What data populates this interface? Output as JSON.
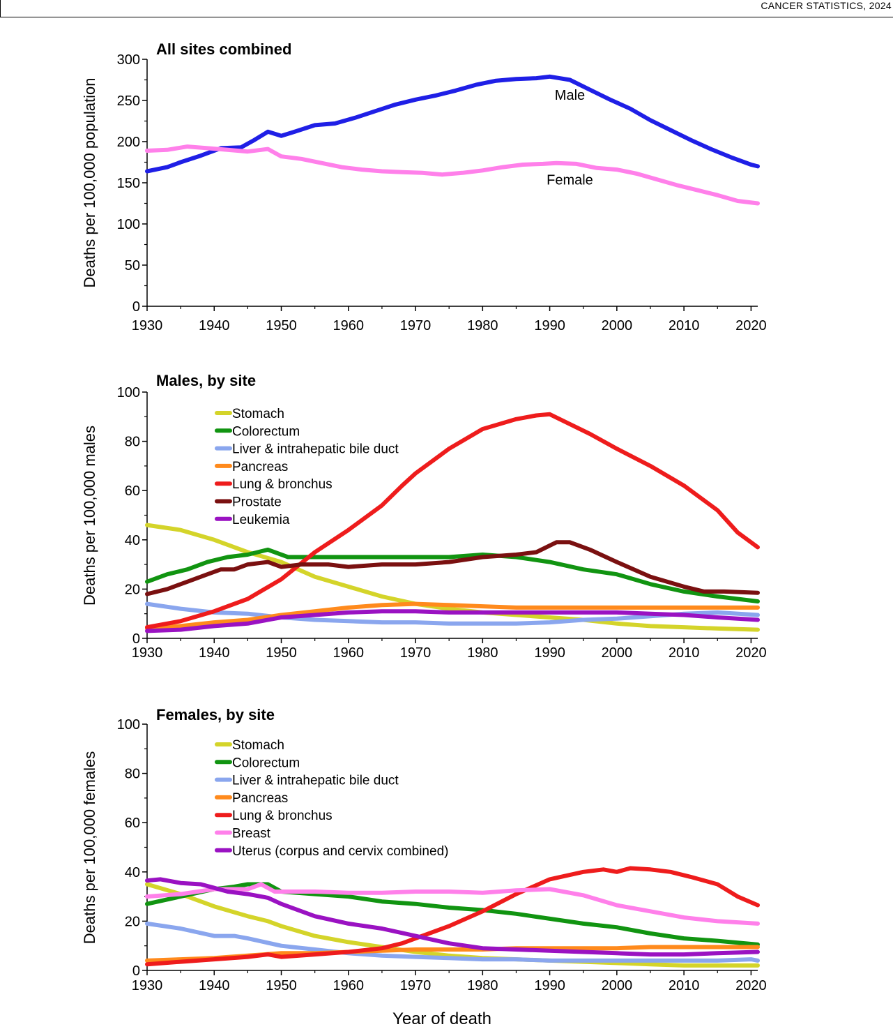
{
  "running_head": "CANCER STATISTICS, 2024",
  "shared_xlabel": "Year of death",
  "colors": {
    "male": "#1f1fe6",
    "female": "#ff80ea",
    "stomach": "#d4d42a",
    "colorectum": "#119411",
    "liver": "#8aa6ee",
    "pancreas": "#ff8a1c",
    "lung": "#ee1c1c",
    "prostate": "#7a1010",
    "leukemia": "#9a12c2",
    "breast": "#ff80ea",
    "uterus": "#9a12c2"
  },
  "chart_data": [
    {
      "type": "line",
      "title": "All sites combined",
      "ylabel": "Deaths per 100,000 population",
      "xlim": [
        1930,
        2021
      ],
      "ylim": [
        0,
        300
      ],
      "xticks": [
        1930,
        1940,
        1950,
        1960,
        1970,
        1980,
        1990,
        2000,
        2010,
        2020
      ],
      "yticks": [
        0,
        50,
        100,
        150,
        200,
        250,
        300
      ],
      "legend_placement": "inline-labels",
      "annotations": [
        {
          "text": "Male",
          "series": "Male",
          "x": 1993,
          "y": 251
        },
        {
          "text": "Female",
          "series": "Female",
          "x": 1993,
          "y": 148
        }
      ],
      "series": [
        {
          "name": "Male",
          "color": "#1f1fe6",
          "x": [
            1930,
            1933,
            1935,
            1938,
            1941,
            1944,
            1946,
            1948,
            1950,
            1952,
            1955,
            1958,
            1961,
            1964,
            1967,
            1970,
            1973,
            1976,
            1979,
            1982,
            1985,
            1988,
            1990,
            1993,
            1996,
            1999,
            2002,
            2005,
            2008,
            2011,
            2014,
            2017,
            2020,
            2021
          ],
          "y": [
            164,
            169,
            175,
            183,
            192,
            193,
            202,
            212,
            207,
            212,
            220,
            222,
            229,
            237,
            245,
            251,
            256,
            262,
            269,
            274,
            276,
            277,
            279,
            275,
            263,
            251,
            240,
            226,
            214,
            202,
            191,
            181,
            172,
            170
          ]
        },
        {
          "name": "Female",
          "color": "#ff80ea",
          "x": [
            1930,
            1933,
            1936,
            1939,
            1942,
            1945,
            1948,
            1950,
            1953,
            1956,
            1959,
            1962,
            1965,
            1968,
            1971,
            1974,
            1977,
            1980,
            1983,
            1986,
            1989,
            1991,
            1994,
            1997,
            2000,
            2003,
            2006,
            2009,
            2012,
            2015,
            2018,
            2021
          ],
          "y": [
            189,
            190,
            194,
            192,
            190,
            188,
            191,
            182,
            179,
            174,
            169,
            166,
            164,
            163,
            162,
            160,
            162,
            165,
            169,
            172,
            173,
            174,
            173,
            168,
            166,
            161,
            154,
            147,
            141,
            135,
            128,
            125
          ]
        }
      ]
    },
    {
      "type": "line",
      "title": "Males, by site",
      "ylabel": "Deaths per 100,000 males",
      "xlim": [
        1930,
        2021
      ],
      "ylim": [
        0,
        100
      ],
      "xticks": [
        1930,
        1940,
        1950,
        1960,
        1970,
        1980,
        1990,
        2000,
        2010,
        2020
      ],
      "yticks": [
        0,
        20,
        40,
        60,
        80,
        100
      ],
      "legend_placement": "top-left",
      "series": [
        {
          "name": "Stomach",
          "color": "#d4d42a",
          "x": [
            1930,
            1935,
            1940,
            1945,
            1950,
            1955,
            1960,
            1965,
            1970,
            1975,
            1980,
            1985,
            1990,
            1995,
            2000,
            2005,
            2010,
            2015,
            2021
          ],
          "y": [
            46,
            44,
            40,
            35,
            31,
            25,
            21,
            17,
            14,
            12,
            10.5,
            9.5,
            8.5,
            7.5,
            6,
            5,
            4.5,
            4,
            3.5
          ]
        },
        {
          "name": "Colorectum",
          "color": "#119411",
          "x": [
            1930,
            1933,
            1936,
            1939,
            1942,
            1945,
            1948,
            1951,
            1955,
            1960,
            1965,
            1970,
            1975,
            1980,
            1985,
            1990,
            1995,
            2000,
            2005,
            2010,
            2015,
            2021
          ],
          "y": [
            23,
            26,
            28,
            31,
            33,
            34,
            36,
            33,
            33,
            33,
            33,
            33,
            33,
            34,
            33,
            31,
            28,
            26,
            22,
            19,
            17,
            15
          ]
        },
        {
          "name": "Liver & intrahepatic bile duct",
          "color": "#8aa6ee",
          "x": [
            1930,
            1935,
            1940,
            1945,
            1950,
            1955,
            1960,
            1965,
            1970,
            1975,
            1980,
            1985,
            1990,
            1995,
            2000,
            2005,
            2010,
            2015,
            2021
          ],
          "y": [
            14,
            12,
            10.5,
            10,
            8.5,
            7.5,
            7,
            6.5,
            6.5,
            6,
            6,
            6,
            6.5,
            7.5,
            8,
            9,
            10,
            10.5,
            9.5
          ]
        },
        {
          "name": "Pancreas",
          "color": "#ff8a1c",
          "x": [
            1930,
            1935,
            1940,
            1945,
            1950,
            1955,
            1960,
            1965,
            1970,
            1975,
            1980,
            1985,
            1990,
            1995,
            2000,
            2005,
            2010,
            2015,
            2021
          ],
          "y": [
            4,
            5,
            6.5,
            7.5,
            9.5,
            11,
            12.5,
            13.5,
            14,
            13.5,
            13,
            12.5,
            12.5,
            12.5,
            12.5,
            12.5,
            12.5,
            12.5,
            12.5
          ]
        },
        {
          "name": "Lung & bronchus",
          "color": "#ee1c1c",
          "x": [
            1930,
            1935,
            1940,
            1945,
            1950,
            1955,
            1960,
            1965,
            1968,
            1970,
            1975,
            1980,
            1985,
            1988,
            1990,
            1993,
            1996,
            2000,
            2005,
            2010,
            2015,
            2018,
            2021
          ],
          "y": [
            4.5,
            7,
            11,
            16,
            24,
            35,
            44,
            54,
            62,
            67,
            77,
            85,
            89,
            90.5,
            91,
            87,
            83,
            77,
            70,
            62,
            52,
            43,
            37
          ]
        },
        {
          "name": "Prostate",
          "color": "#7a1010",
          "x": [
            1930,
            1933,
            1936,
            1939,
            1941,
            1943,
            1945,
            1948,
            1950,
            1953,
            1957,
            1960,
            1965,
            1970,
            1975,
            1980,
            1985,
            1988,
            1991,
            1993,
            1996,
            2000,
            2005,
            2010,
            2013,
            2016,
            2021
          ],
          "y": [
            18,
            20,
            23,
            26,
            28,
            28,
            30,
            31,
            29,
            30,
            30,
            29,
            30,
            30,
            31,
            33,
            34,
            35,
            39,
            39,
            36,
            31,
            25,
            21,
            19,
            19,
            18.5
          ]
        },
        {
          "name": "Leukemia",
          "color": "#9a12c2",
          "x": [
            1930,
            1935,
            1940,
            1945,
            1950,
            1955,
            1960,
            1965,
            1970,
            1975,
            1980,
            1985,
            1990,
            1995,
            2000,
            2005,
            2010,
            2015,
            2021
          ],
          "y": [
            3,
            3.5,
            5,
            6,
            8.5,
            9.5,
            10.5,
            11,
            11,
            10.5,
            10.5,
            10.5,
            10.5,
            10.5,
            10.5,
            10,
            9.5,
            8.5,
            7.5
          ]
        }
      ]
    },
    {
      "type": "line",
      "title": "Females, by site",
      "ylabel": "Deaths per 100,000 females",
      "xlim": [
        1930,
        2021
      ],
      "ylim": [
        0,
        100
      ],
      "xticks": [
        1930,
        1940,
        1950,
        1960,
        1970,
        1980,
        1990,
        2000,
        2010,
        2020
      ],
      "yticks": [
        0,
        20,
        40,
        60,
        80,
        100
      ],
      "legend_placement": "top-left",
      "series": [
        {
          "name": "Stomach",
          "color": "#d4d42a",
          "x": [
            1930,
            1935,
            1940,
            1945,
            1948,
            1950,
            1955,
            1960,
            1965,
            1970,
            1975,
            1980,
            1985,
            1990,
            1995,
            2000,
            2005,
            2010,
            2015,
            2021
          ],
          "y": [
            35,
            31,
            26,
            22,
            20,
            18,
            14,
            11.5,
            9.5,
            7.5,
            6,
            5,
            4.5,
            4,
            3.5,
            3,
            2.5,
            2,
            2,
            2
          ]
        },
        {
          "name": "Colorectum",
          "color": "#119411",
          "x": [
            1930,
            1935,
            1940,
            1943,
            1945,
            1948,
            1950,
            1955,
            1960,
            1965,
            1970,
            1975,
            1980,
            1985,
            1990,
            1995,
            2000,
            2005,
            2010,
            2015,
            2021
          ],
          "y": [
            27,
            30,
            33,
            34,
            35,
            35,
            32,
            31,
            30,
            28,
            27,
            25.5,
            24.5,
            23,
            21,
            19,
            17.5,
            15,
            13,
            12,
            10.5
          ]
        },
        {
          "name": "Liver & intrahepatic bile duct",
          "color": "#8aa6ee",
          "x": [
            1930,
            1935,
            1940,
            1943,
            1945,
            1950,
            1955,
            1960,
            1965,
            1970,
            1975,
            1980,
            1985,
            1990,
            1995,
            2000,
            2005,
            2010,
            2015,
            2020,
            2021
          ],
          "y": [
            19,
            17,
            14,
            14,
            13,
            10,
            8.5,
            7,
            6,
            5.5,
            5,
            4.5,
            4.5,
            4,
            4,
            4,
            4,
            4,
            4,
            4.5,
            4
          ]
        },
        {
          "name": "Pancreas",
          "color": "#ff8a1c",
          "x": [
            1930,
            1935,
            1940,
            1945,
            1950,
            1955,
            1960,
            1965,
            1970,
            1975,
            1980,
            1985,
            1990,
            1995,
            2000,
            2005,
            2010,
            2015,
            2021
          ],
          "y": [
            4,
            4.5,
            5,
            6,
            7,
            7,
            7.5,
            8,
            8.5,
            8.5,
            8.5,
            9,
            9,
            9,
            9,
            9.5,
            9.5,
            9.5,
            9.5
          ]
        },
        {
          "name": "Lung & bronchus",
          "color": "#ee1c1c",
          "x": [
            1930,
            1935,
            1940,
            1945,
            1948,
            1950,
            1955,
            1960,
            1965,
            1968,
            1970,
            1975,
            1980,
            1985,
            1990,
            1995,
            1998,
            2000,
            2002,
            2005,
            2008,
            2011,
            2015,
            2018,
            2021
          ],
          "y": [
            2.5,
            3.5,
            4.5,
            5.5,
            6.5,
            5.5,
            6.5,
            7.5,
            9,
            11,
            13,
            18,
            24,
            31,
            37,
            40,
            41,
            40,
            41.5,
            41,
            40,
            38,
            35,
            30,
            26.5
          ]
        },
        {
          "name": "Breast",
          "color": "#ff80ea",
          "x": [
            1930,
            1935,
            1940,
            1945,
            1947,
            1949,
            1950,
            1955,
            1960,
            1965,
            1970,
            1975,
            1980,
            1985,
            1990,
            1992,
            1995,
            2000,
            2005,
            2010,
            2015,
            2021
          ],
          "y": [
            30,
            31,
            33,
            33,
            35,
            32,
            32,
            32,
            31.5,
            31.5,
            32,
            32,
            31.5,
            32.5,
            33,
            32,
            30.5,
            26.5,
            24,
            21.5,
            20,
            19
          ]
        },
        {
          "name": "Uterus (corpus and cervix combined)",
          "color": "#9a12c2",
          "x": [
            1930,
            1932,
            1935,
            1938,
            1940,
            1942,
            1945,
            1948,
            1950,
            1955,
            1960,
            1965,
            1970,
            1975,
            1980,
            1985,
            1990,
            1995,
            2000,
            2005,
            2010,
            2015,
            2021
          ],
          "y": [
            36.5,
            37,
            35.5,
            35,
            33.5,
            32,
            31,
            29.5,
            27,
            22,
            19,
            17,
            14,
            11,
            9,
            8.5,
            8,
            7.5,
            7,
            6.5,
            6.5,
            7,
            7.5
          ]
        }
      ]
    }
  ]
}
